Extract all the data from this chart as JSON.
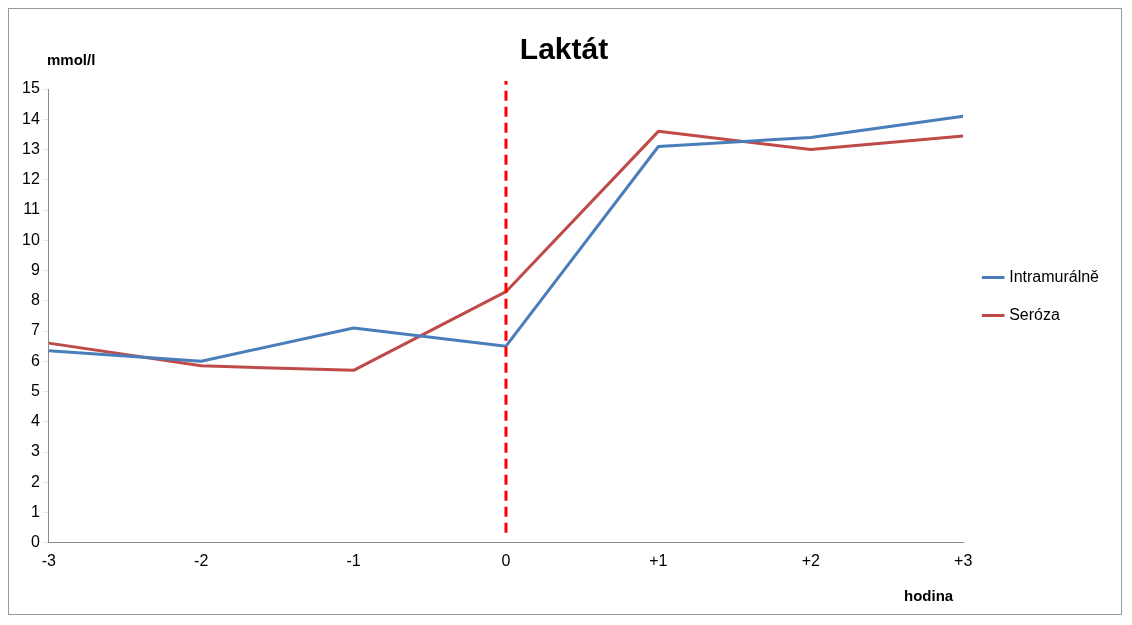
{
  "chart_data": {
    "type": "line",
    "title": "Laktát",
    "xlabel": "hodina",
    "ylabel": "mmol/l",
    "x": [
      -3,
      -2,
      -1,
      0,
      1,
      2,
      3
    ],
    "series": [
      {
        "name": "Intramurálně",
        "color": "#4a7ebb",
        "values": [
          6.35,
          6.0,
          7.1,
          6.5,
          13.1,
          13.4,
          14.1
        ]
      },
      {
        "name": "Seróza",
        "color": "#be4b48",
        "values": [
          6.6,
          5.85,
          5.7,
          8.3,
          13.6,
          13.0,
          13.45
        ]
      }
    ],
    "xlim": [
      -3,
      3
    ],
    "xticks": [
      -3,
      -2,
      -1,
      0,
      {
        "value": 1,
        "label": "+1"
      },
      {
        "value": 2,
        "label": "+2"
      },
      {
        "value": 3,
        "label": "+3"
      }
    ],
    "ylim": [
      0,
      15
    ],
    "yticks": [
      0,
      1,
      2,
      3,
      4,
      5,
      6,
      7,
      8,
      9,
      10,
      11,
      12,
      13,
      14,
      15
    ],
    "ref_lines": [
      {
        "axis": "x",
        "value": 0,
        "color": "#ff0000",
        "line_style": "dashed"
      }
    ],
    "grid": false,
    "legend": "right",
    "marker": "none",
    "line_style": "solid"
  }
}
